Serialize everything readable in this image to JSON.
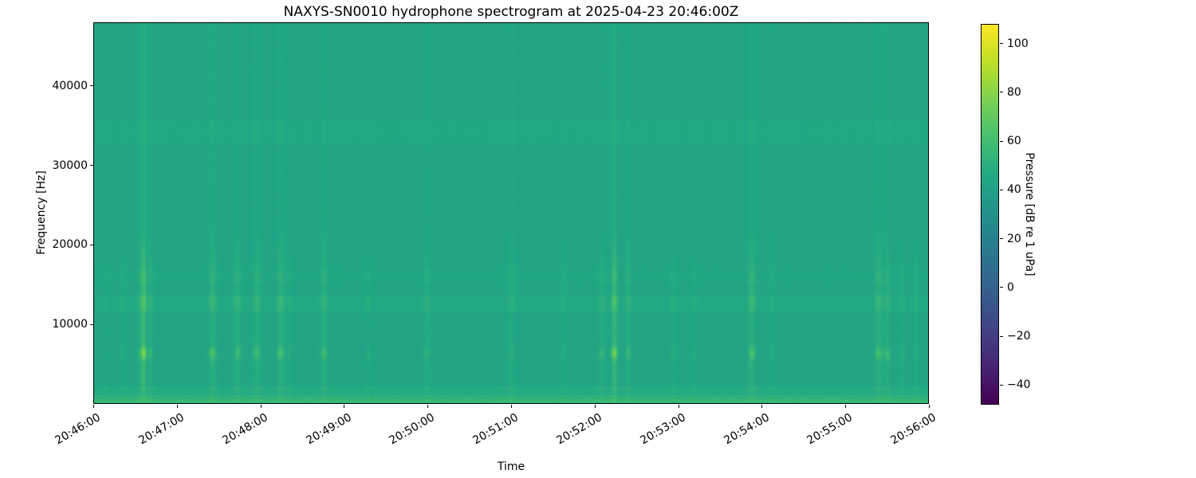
{
  "chart": {
    "title": "NAXYS-SN0010 hydrophone spectrogram at 2025-04-23 20:46:00Z",
    "xlabel": "Time",
    "ylabel": "Frequency [Hz]",
    "x_tick_labels": [
      "20:46:00",
      "20:47:00",
      "20:48:00",
      "20:49:00",
      "20:50:00",
      "20:51:00",
      "20:52:00",
      "20:53:00",
      "20:54:00",
      "20:55:00",
      "20:56:00"
    ],
    "y_ticks": [
      {
        "value": 10000,
        "label": "10000"
      },
      {
        "value": 20000,
        "label": "20000"
      },
      {
        "value": 30000,
        "label": "30000"
      },
      {
        "value": 40000,
        "label": "40000"
      }
    ]
  },
  "colorbar": {
    "label": "Pressure [dB re 1 uPa]",
    "ticks": [
      {
        "value": 100,
        "label": "100"
      },
      {
        "value": 80,
        "label": "80"
      },
      {
        "value": 60,
        "label": "60"
      },
      {
        "value": 40,
        "label": "40"
      },
      {
        "value": 20,
        "label": "20"
      },
      {
        "value": 0,
        "label": "0"
      },
      {
        "value": -20,
        "label": "−20"
      },
      {
        "value": -40,
        "label": "−40"
      }
    ]
  },
  "chart_data": {
    "type": "spectrogram",
    "title": "NAXYS-SN0010 hydrophone spectrogram at 2025-04-23 20:46:00Z",
    "xlabel": "Time",
    "ylabel": "Frequency [Hz]",
    "time_start": "2025-04-23 20:46:00Z",
    "duration_s": 600,
    "x_tick_interval_s": 60,
    "freq_range_hz": [
      0,
      48000
    ],
    "value_range_db": [
      -48,
      108
    ],
    "background_db": 43,
    "colormap": "viridis",
    "colormap_stops": [
      "#440154",
      "#482475",
      "#414487",
      "#355f8d",
      "#2a788e",
      "#21918c",
      "#22a884",
      "#44bf70",
      "#7ad151",
      "#bddf26",
      "#fde725"
    ],
    "bands": [
      {
        "f0": 0,
        "f1": 500,
        "db": 13
      },
      {
        "f0": 500,
        "f1": 1000,
        "db": 9
      },
      {
        "f0": 1000,
        "f1": 2100,
        "db": 4
      },
      {
        "f0": 11500,
        "f1": 13600,
        "db": 2.4
      },
      {
        "f0": 15000,
        "f1": 17000,
        "db": 1.1
      },
      {
        "f0": 32800,
        "f1": 35800,
        "db": 1.9
      }
    ],
    "tonal_peak_hz": 6300,
    "events": [
      {
        "t_s": 8,
        "sigma_s": 1.5,
        "broadband_db": 0.8,
        "midband_db": 1.2,
        "tonal_db": 0
      },
      {
        "t_s": 20,
        "sigma_s": 1.5,
        "broadband_db": 0.8,
        "midband_db": 1.5,
        "tonal_db": 3
      },
      {
        "t_s": 33,
        "sigma_s": 1.5,
        "broadband_db": 2,
        "midband_db": 3,
        "tonal_db": 6
      },
      {
        "t_s": 35.5,
        "sigma_s": 1.2,
        "broadband_db": 5,
        "midband_db": 8,
        "tonal_db": 24
      },
      {
        "t_s": 40,
        "sigma_s": 1.5,
        "broadband_db": 2,
        "midband_db": 3,
        "tonal_db": 8
      },
      {
        "t_s": 85,
        "sigma_s": 2,
        "broadband_db": 2.5,
        "midband_db": 4,
        "tonal_db": 14
      },
      {
        "t_s": 103,
        "sigma_s": 1.8,
        "broadband_db": 2,
        "midband_db": 3.5,
        "tonal_db": 11
      },
      {
        "t_s": 117,
        "sigma_s": 1.8,
        "broadband_db": 2,
        "midband_db": 3.5,
        "tonal_db": 11
      },
      {
        "t_s": 134,
        "sigma_s": 2,
        "broadband_db": 2.5,
        "midband_db": 4,
        "tonal_db": 13
      },
      {
        "t_s": 140,
        "sigma_s": 1.2,
        "broadband_db": 1,
        "midband_db": 2,
        "tonal_db": 4
      },
      {
        "t_s": 165,
        "sigma_s": 1.8,
        "broadband_db": 2,
        "midband_db": 3.5,
        "tonal_db": 11
      },
      {
        "t_s": 197,
        "sigma_s": 1.5,
        "broadband_db": 1,
        "midband_db": 1.8,
        "tonal_db": 3
      },
      {
        "t_s": 239,
        "sigma_s": 1.8,
        "broadband_db": 1.2,
        "midband_db": 2,
        "tonal_db": 6
      },
      {
        "t_s": 300,
        "sigma_s": 2,
        "broadband_db": 1.5,
        "midband_db": 2.2,
        "tonal_db": 4
      },
      {
        "t_s": 337,
        "sigma_s": 1.5,
        "broadband_db": 1,
        "midband_db": 1.6,
        "tonal_db": 3
      },
      {
        "t_s": 365,
        "sigma_s": 1.8,
        "broadband_db": 1.5,
        "midband_db": 2.5,
        "tonal_db": 8
      },
      {
        "t_s": 374,
        "sigma_s": 1.5,
        "broadband_db": 4,
        "midband_db": 7,
        "tonal_db": 24
      },
      {
        "t_s": 384,
        "sigma_s": 1.5,
        "broadband_db": 2,
        "midband_db": 3,
        "tonal_db": 9
      },
      {
        "t_s": 416,
        "sigma_s": 1.5,
        "broadband_db": 1,
        "midband_db": 1.6,
        "tonal_db": 3
      },
      {
        "t_s": 432,
        "sigma_s": 1.5,
        "broadband_db": 1,
        "midband_db": 1.5,
        "tonal_db": 2
      },
      {
        "t_s": 473,
        "sigma_s": 1.8,
        "broadband_db": 3,
        "midband_db": 4.5,
        "tonal_db": 15
      },
      {
        "t_s": 487,
        "sigma_s": 1.5,
        "broadband_db": 1,
        "midband_db": 1.6,
        "tonal_db": 3
      },
      {
        "t_s": 564,
        "sigma_s": 1.8,
        "broadband_db": 2.5,
        "midband_db": 4,
        "tonal_db": 13
      },
      {
        "t_s": 570,
        "sigma_s": 1.8,
        "broadband_db": 2,
        "midband_db": 3,
        "tonal_db": 10
      },
      {
        "t_s": 581,
        "sigma_s": 1.5,
        "broadband_db": 1.2,
        "midband_db": 2,
        "tonal_db": 4
      },
      {
        "t_s": 591,
        "sigma_s": 1.5,
        "broadband_db": 1,
        "midband_db": 1.6,
        "tonal_db": 3
      }
    ],
    "noise": {
      "seed": 42,
      "column_db": 0.9,
      "pixel_db": 0.55
    }
  }
}
